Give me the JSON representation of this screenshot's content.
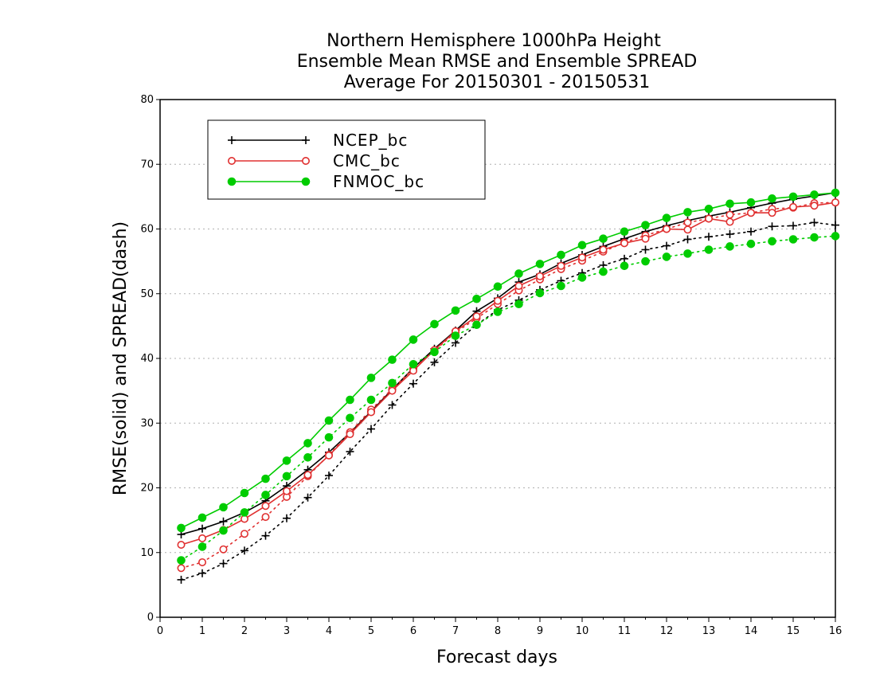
{
  "chart_data": {
    "type": "line",
    "title": [
      "Northern Hemisphere 1000hPa Height",
      "Ensemble Mean RMSE and Ensemble SPREAD",
      "Average For 20150301 - 20150531"
    ],
    "xlabel": "Forecast days",
    "ylabel": "RMSE(solid) and SPREAD(dash)",
    "xlim": [
      0,
      16
    ],
    "ylim": [
      0,
      80
    ],
    "xticks": [
      "0",
      "1",
      "2",
      "3",
      "4",
      "5",
      "6",
      "7",
      "8",
      "9",
      "10",
      "11",
      "12",
      "13",
      "14",
      "15",
      "16"
    ],
    "yticks": [
      "0",
      "10",
      "20",
      "30",
      "40",
      "50",
      "60",
      "70",
      "80"
    ],
    "grid": "horizontal dotted",
    "legend_position": "top-left",
    "x": [
      0.5,
      1,
      1.5,
      2,
      2.5,
      3,
      3.5,
      4,
      4.5,
      5,
      5.5,
      6,
      6.5,
      7,
      7.5,
      8,
      8.5,
      9,
      9.5,
      10,
      10.5,
      11,
      11.5,
      12,
      12.5,
      13,
      13.5,
      14,
      14.5,
      15,
      15.5,
      16
    ],
    "series": [
      {
        "name": "NCEP_bc",
        "color": "#000000",
        "marker": "plus",
        "rmse": [
          12.8,
          13.7,
          14.8,
          16.2,
          18.0,
          20.3,
          22.8,
          25.5,
          28.5,
          31.8,
          35.2,
          38.5,
          41.5,
          44.3,
          47.3,
          49.3,
          51.8,
          53.0,
          54.7,
          56.0,
          57.3,
          58.5,
          59.6,
          60.5,
          61.3,
          62.0,
          62.6,
          63.3,
          64.0,
          64.6,
          65.1,
          65.6
        ],
        "spread": [
          5.8,
          6.8,
          8.3,
          10.3,
          12.6,
          15.3,
          18.5,
          21.9,
          25.6,
          29.1,
          32.8,
          36.1,
          39.4,
          42.4,
          45.2,
          47.5,
          49.0,
          50.6,
          52.0,
          53.2,
          54.4,
          55.4,
          56.8,
          57.4,
          58.4,
          58.8,
          59.2,
          59.6,
          60.4,
          60.5,
          61.0,
          60.6
        ]
      },
      {
        "name": "CMC_bc",
        "color": "#e03030",
        "marker": "open-circle",
        "rmse": [
          11.2,
          12.2,
          13.5,
          15.2,
          17.2,
          19.5,
          22.0,
          25.0,
          28.3,
          31.7,
          35.0,
          38.1,
          41.3,
          44.2,
          46.5,
          48.9,
          51.2,
          52.7,
          54.3,
          55.6,
          56.8,
          57.8,
          58.5,
          60.0,
          59.9,
          61.6,
          61.1,
          62.5,
          62.5,
          63.4,
          63.6,
          64.1
        ],
        "spread": [
          7.6,
          8.5,
          10.5,
          12.9,
          15.5,
          18.6,
          21.8,
          25.1,
          28.6,
          32.1,
          35.3,
          38.4,
          41.2,
          44.0,
          46.2,
          48.4,
          50.5,
          52.2,
          53.8,
          55.1,
          56.5,
          57.9,
          59.0,
          60.0,
          61.0,
          61.6,
          62.2,
          62.5,
          63.1,
          63.3,
          64.0,
          64.1
        ]
      },
      {
        "name": "FNMOC_bc",
        "color": "#00cc00",
        "marker": "filled-circle",
        "rmse": [
          13.8,
          15.4,
          17.0,
          19.2,
          21.4,
          24.2,
          26.9,
          30.4,
          33.6,
          37.0,
          39.8,
          42.9,
          45.3,
          47.4,
          49.2,
          51.1,
          53.1,
          54.6,
          56.0,
          57.5,
          58.5,
          59.6,
          60.6,
          61.7,
          62.6,
          63.1,
          63.9,
          64.1,
          64.7,
          65.0,
          65.3,
          65.6
        ],
        "spread": [
          8.8,
          10.9,
          13.4,
          16.2,
          18.9,
          21.8,
          24.7,
          27.8,
          30.8,
          33.6,
          36.2,
          39.1,
          41.0,
          43.5,
          45.2,
          47.2,
          48.4,
          50.1,
          51.2,
          52.5,
          53.4,
          54.3,
          55.0,
          55.7,
          56.2,
          56.8,
          57.3,
          57.7,
          58.1,
          58.4,
          58.7,
          58.9
        ]
      }
    ]
  }
}
